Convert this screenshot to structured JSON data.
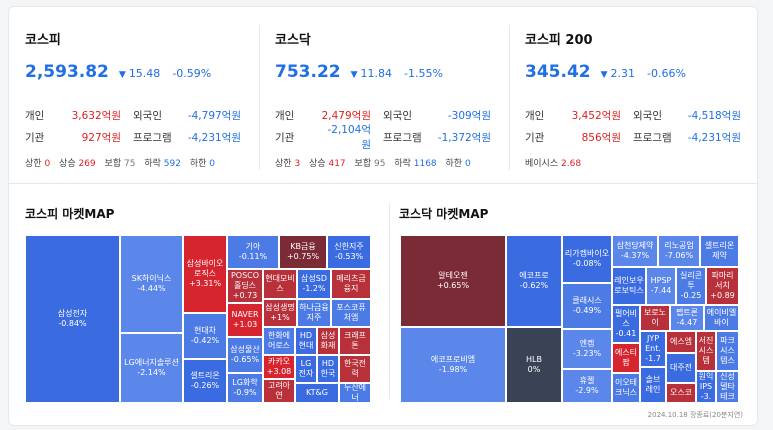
{
  "indices": [
    {
      "name": "코스피",
      "value": "2,593.82",
      "change": "15.48",
      "pct": "-0.59%",
      "flows": [
        {
          "k": "개인",
          "v": "3,632억원",
          "k2": "외국인",
          "v2": "-4,797억원"
        },
        {
          "k": "기관",
          "v": "927억원",
          "k2": "프로그램",
          "v2": "-4,231억원"
        }
      ],
      "counts": {
        "상한": "0",
        "상승": "269",
        "보합": "75",
        "하락": "592",
        "하한": "0"
      }
    },
    {
      "name": "코스닥",
      "value": "753.22",
      "change": "11.84",
      "pct": "-1.55%",
      "flows": [
        {
          "k": "개인",
          "v": "2,479억원",
          "k2": "외국인",
          "v2": "-309억원"
        },
        {
          "k": "기관",
          "v": "-2,104억원",
          "k2": "프로그램",
          "v2": "-1,372억원"
        }
      ],
      "counts": {
        "상한": "3",
        "상승": "417",
        "보합": "95",
        "하락": "1168",
        "하한": "0"
      }
    },
    {
      "name": "코스피 200",
      "value": "345.42",
      "change": "2.31",
      "pct": "-0.66%",
      "flows": [
        {
          "k": "개인",
          "v": "3,452억원",
          "k2": "외국인",
          "v2": "-4,518억원"
        },
        {
          "k": "기관",
          "v": "856억원",
          "k2": "프로그램",
          "v2": "-4,231억원"
        }
      ],
      "basis_label": "베이시스",
      "basis_value": "2.68"
    }
  ],
  "count_labels": {
    "upper": "상한",
    "up": "상승",
    "flat": "보합",
    "down": "하락",
    "lower": "하한"
  },
  "down_symbol": "▼",
  "maps": {
    "kospi_title": "코스피 마켓MAP",
    "kosdaq_title": "코스닥 마켓MAP",
    "kospi_tiles": [
      {
        "n": "삼성전자",
        "c": "-0.84%"
      },
      {
        "n": "SK하이닉스",
        "c": "-4.44%"
      },
      {
        "n": "LG에너지솔루션",
        "c": "-2.14%"
      },
      {
        "n": "삼성바이오로직스",
        "c": "+3.31%"
      },
      {
        "n": "현대차",
        "c": "-0.42%"
      },
      {
        "n": "셀트리온",
        "c": "-0.26%"
      },
      {
        "n": "기아",
        "c": "-0.11%"
      },
      {
        "n": "KB금융",
        "c": "+0.75%"
      },
      {
        "n": "신한지주",
        "c": "-0.53%"
      },
      {
        "n": "POSCO홀딩스",
        "c": "+0.73"
      },
      {
        "n": "현대모비스",
        "c": ""
      },
      {
        "n": "삼성SD",
        "c": "-1.2%"
      },
      {
        "n": "메리츠금융지",
        "c": ""
      },
      {
        "n": "NAVER",
        "c": "+1.03"
      },
      {
        "n": "삼성생명",
        "c": "+1%"
      },
      {
        "n": "하나금융지주",
        "c": ""
      },
      {
        "n": "포스코퓨처엠",
        "c": ""
      },
      {
        "n": "삼성물산",
        "c": "-0.65%"
      },
      {
        "n": "한화에어로스",
        "c": ""
      },
      {
        "n": "HD현대",
        "c": ""
      },
      {
        "n": "삼성화재",
        "c": ""
      },
      {
        "n": "크래프톤",
        "c": ""
      },
      {
        "n": "LG화학",
        "c": "-0.9%"
      },
      {
        "n": "카카오",
        "c": "+3.08"
      },
      {
        "n": "LG전자",
        "c": ""
      },
      {
        "n": "HD한국",
        "c": ""
      },
      {
        "n": "한국전력",
        "c": ""
      },
      {
        "n": "고려아연",
        "c": ""
      },
      {
        "n": "KT&G",
        "c": ""
      },
      {
        "n": "두산에너",
        "c": ""
      }
    ],
    "kosdaq_tiles": [
      {
        "n": "알테오젠",
        "c": "+0.65%"
      },
      {
        "n": "에코프로비엠",
        "c": "-1.98%"
      },
      {
        "n": "에코프로",
        "c": "-0.62%"
      },
      {
        "n": "HLB",
        "c": "0%"
      },
      {
        "n": "리가켐바이오",
        "c": "-0.08%"
      },
      {
        "n": "클래시스",
        "c": "-0.49%"
      },
      {
        "n": "엔켐",
        "c": "-3.23%"
      },
      {
        "n": "휴젤",
        "c": "-2.9%"
      },
      {
        "n": "삼천당제약",
        "c": "-4.37%"
      },
      {
        "n": "리노공업",
        "c": "-7.06%"
      },
      {
        "n": "셀트리온제약",
        "c": ""
      },
      {
        "n": "레인보우로보틱스",
        "c": ""
      },
      {
        "n": "HPSP",
        "c": "-7.44"
      },
      {
        "n": "실리콘투",
        "c": "-0.25"
      },
      {
        "n": "파마리서치",
        "c": "+0.89"
      },
      {
        "n": "펄어비스",
        "c": "-0.41"
      },
      {
        "n": "보로노이",
        "c": ""
      },
      {
        "n": "펩트론",
        "c": "-4.47"
      },
      {
        "n": "에이비엘바이",
        "c": ""
      },
      {
        "n": "에스티팜",
        "c": ""
      },
      {
        "n": "JYP Ent.",
        "c": "-1.7"
      },
      {
        "n": "에스엠",
        "c": ""
      },
      {
        "n": "서진시스템",
        "c": ""
      },
      {
        "n": "파크시스템스",
        "c": ""
      },
      {
        "n": "이오테크닉스",
        "c": ""
      },
      {
        "n": "솔브레인",
        "c": ""
      },
      {
        "n": "대주전",
        "c": ""
      },
      {
        "n": "원익IPS",
        "c": "-3."
      },
      {
        "n": "신성델타테크",
        "c": ""
      },
      {
        "n": "오스코",
        "c": ""
      }
    ]
  },
  "footer": "2024.10.18 장종료(20분지연)",
  "colors": {
    "down": "#1f6fe5",
    "up": "#e02020"
  }
}
